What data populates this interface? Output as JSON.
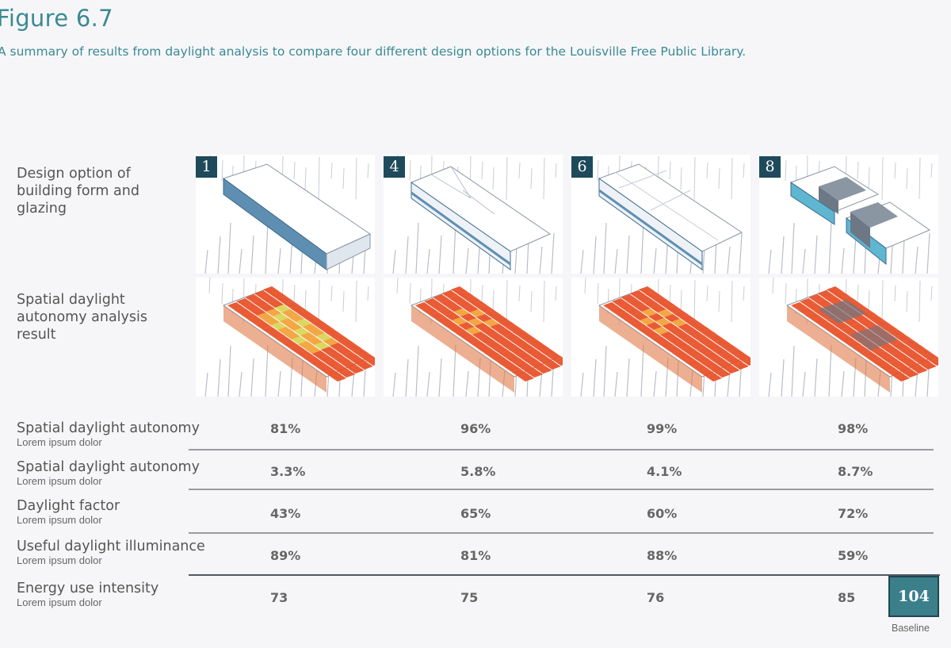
{
  "figure": {
    "title": "Figure 6.7",
    "caption": "A summary of results from daylight analysis to compare four different design options for the Louisville Free Public Library."
  },
  "row_labels": {
    "design": "Design option of building form and glazing",
    "analysis": "Spatial daylight autonomy analysis result"
  },
  "options": [
    {
      "number": "1"
    },
    {
      "number": "4"
    },
    {
      "number": "6"
    },
    {
      "number": "8"
    }
  ],
  "metrics": [
    {
      "label": "Spatial daylight autonomy",
      "sublabel": "Lorem ipsum dolor",
      "values": [
        "81%",
        "96%",
        "99%",
        "98%"
      ]
    },
    {
      "label": "Spatial daylight autonomy",
      "sublabel": "Lorem ipsum dolor",
      "values": [
        "3.3%",
        "5.8%",
        "4.1%",
        "8.7%"
      ]
    },
    {
      "label": "Daylight factor",
      "sublabel": "Lorem ipsum dolor",
      "values": [
        "43%",
        "65%",
        "60%",
        "72%"
      ]
    },
    {
      "label": "Useful daylight illuminance",
      "sublabel": "Lorem ipsum dolor",
      "values": [
        "89%",
        "81%",
        "88%",
        "59%"
      ]
    },
    {
      "label": "Energy use intensity",
      "sublabel": "Lorem ipsum dolor",
      "values": [
        "73",
        "75",
        "76",
        "85"
      ]
    }
  ],
  "baseline": {
    "value": "104",
    "label": "Baseline"
  },
  "colors": {
    "accent": "#3a8a94",
    "badge": "#1e4a5c",
    "baseline_fill": "#3b7f8a",
    "heat_hot": "#e8522a",
    "heat_warm": "#f2a23a",
    "heat_cool": "#d9d65a"
  }
}
